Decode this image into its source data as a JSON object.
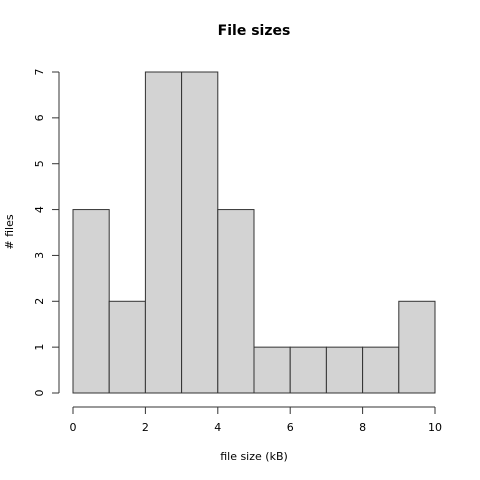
{
  "chart_data": {
    "type": "histogram",
    "title": "File sizes",
    "x_label": "file size (kB)",
    "y_label": "# files",
    "bins": [
      0,
      1,
      2,
      3,
      4,
      5,
      6,
      7,
      8,
      9,
      10
    ],
    "counts": [
      4,
      2,
      7,
      7,
      4,
      1,
      1,
      1,
      1,
      2
    ],
    "color": "#d3d3d3",
    "xlim": [
      0,
      10
    ],
    "xticks": [
      0,
      2,
      4,
      6,
      8,
      10
    ],
    "ylim": [
      0,
      7
    ],
    "yticks": [
      0,
      1,
      2,
      3,
      4,
      5,
      6,
      7
    ]
  }
}
